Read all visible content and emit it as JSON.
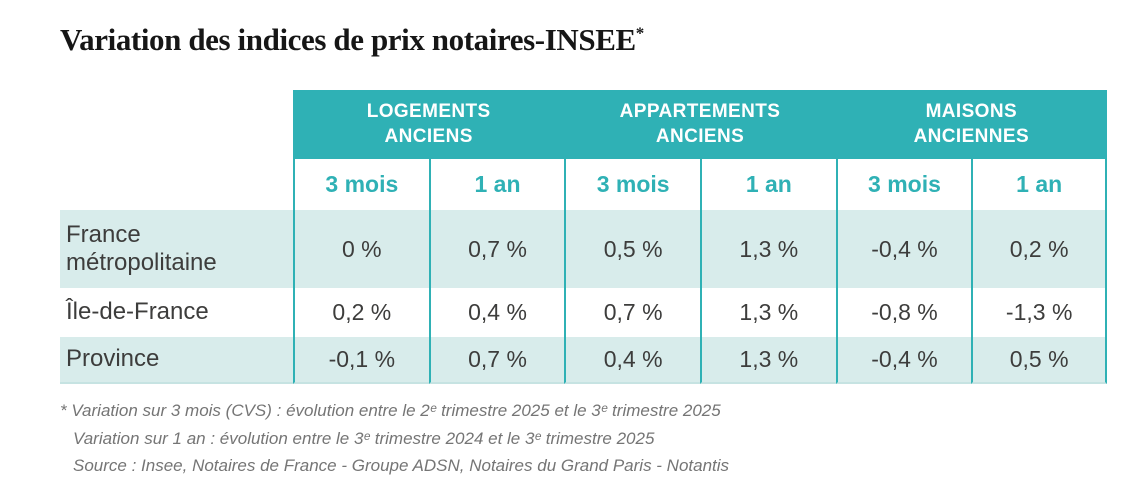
{
  "title": {
    "text": "Variation des indices de prix notaires-INSEE",
    "sup": "*"
  },
  "table": {
    "column_groups": [
      {
        "label": "LOGEMENTS\nANCIENS"
      },
      {
        "label": "APPARTEMENTS\nANCIENS"
      },
      {
        "label": "MAISONS\nANCIENNES"
      }
    ],
    "sub_columns": [
      "3 mois",
      "1 an",
      "3 mois",
      "1 an",
      "3 mois",
      "1 an"
    ],
    "rows": [
      {
        "label": "France\nmétropolitaine",
        "values": [
          "0 %",
          "0,7 %",
          "0,5 %",
          "1,3 %",
          "-0,4 %",
          "0,2 %"
        ]
      },
      {
        "label": "Île-de-France",
        "values": [
          "0,2 %",
          "0,4 %",
          "0,7 %",
          "1,3 %",
          "-0,8 %",
          "-1,3 %"
        ]
      },
      {
        "label": "Province",
        "values": [
          "-0,1 %",
          "0,7 %",
          "0,4 %",
          "1,3 %",
          "-0,4 %",
          "0,5 %"
        ]
      }
    ]
  },
  "footnotes": {
    "line1": "* Variation sur 3 mois (CVS) : évolution entre le 2ᵉ trimestre 2025 et le 3ᵉ trimestre 2025",
    "line2": "Variation sur 1 an : évolution entre le 3ᵉ trimestre 2024 et le 3ᵉ trimestre 2025",
    "line3": "Source : Insee, Notaires de France - Groupe ADSN, Notaires du Grand Paris - Notantis"
  },
  "colors": {
    "header_teal": "#2FB1B5",
    "row_light_teal": "#D8ECEB",
    "header_text": "#FFFFFF",
    "data_text": "#3D3D3C",
    "footnote_gray": "#757575"
  },
  "chart_data": {
    "type": "table",
    "title": "Variation des indices de prix notaires-INSEE",
    "column_groups": [
      "Logements anciens",
      "Appartements anciens",
      "Maisons anciennes"
    ],
    "sub_columns_per_group": [
      "3 mois",
      "1 an"
    ],
    "row_labels": [
      "France métropolitaine",
      "Île-de-France",
      "Province"
    ],
    "values_percent": [
      [
        0.0,
        0.7,
        0.5,
        1.3,
        -0.4,
        0.2
      ],
      [
        0.2,
        0.4,
        0.7,
        1.3,
        -0.8,
        -1.3
      ],
      [
        -0.1,
        0.7,
        0.4,
        1.3,
        -0.4,
        0.5
      ]
    ],
    "notes": [
      "Variation sur 3 mois (CVS) : évolution entre le 2e trimestre 2025 et le 3e trimestre 2025",
      "Variation sur 1 an : évolution entre le 3e trimestre 2024 et le 3e trimestre 2025",
      "Source : Insee, Notaires de France - Groupe ADSN, Notaires du Grand Paris - Notantis"
    ]
  }
}
